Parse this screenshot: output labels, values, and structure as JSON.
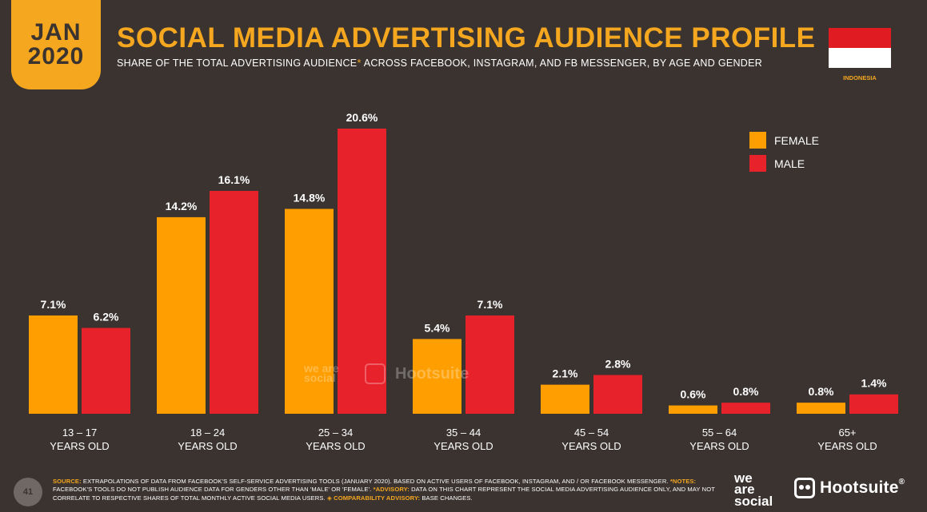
{
  "header": {
    "month": "JAN",
    "year": "2020",
    "title": "SOCIAL MEDIA ADVERTISING AUDIENCE PROFILE",
    "subtitle_pre": "SHARE OF THE TOTAL ADVERTISING AUDIENCE",
    "subtitle_asterisk": "*",
    "subtitle_post": " ACROSS FACEBOOK, INSTAGRAM, AND FB MESSENGER, BY AGE AND GENDER",
    "country": "INDONESIA"
  },
  "colors": {
    "background": "#3a3330",
    "accent": "#f4a71f",
    "female": "#ff9e00",
    "male": "#e8222a",
    "flag_red": "#e11b22",
    "flag_white": "#ffffff"
  },
  "chart_data": {
    "type": "bar",
    "title": "SOCIAL MEDIA ADVERTISING AUDIENCE PROFILE",
    "categories": [
      {
        "line1": "13 – 17",
        "line2": "YEARS OLD"
      },
      {
        "line1": "18 – 24",
        "line2": "YEARS OLD"
      },
      {
        "line1": "25 – 34",
        "line2": "YEARS OLD"
      },
      {
        "line1": "35 – 44",
        "line2": "YEARS OLD"
      },
      {
        "line1": "45 – 54",
        "line2": "YEARS OLD"
      },
      {
        "line1": "55 – 64",
        "line2": "YEARS OLD"
      },
      {
        "line1": "65+",
        "line2": "YEARS OLD"
      }
    ],
    "series": [
      {
        "name": "FEMALE",
        "color": "#ff9e00",
        "values": [
          7.1,
          14.2,
          14.8,
          5.4,
          2.1,
          0.6,
          0.8
        ],
        "labels": [
          "7.1%",
          "14.2%",
          "14.8%",
          "5.4%",
          "2.1%",
          "0.6%",
          "0.8%"
        ]
      },
      {
        "name": "MALE",
        "color": "#e8222a",
        "values": [
          6.2,
          16.1,
          20.6,
          7.1,
          2.8,
          0.8,
          1.4
        ],
        "labels": [
          "6.2%",
          "16.1%",
          "20.6%",
          "7.1%",
          "2.8%",
          "0.8%",
          "1.4%"
        ]
      }
    ],
    "ylim": [
      0,
      20.6
    ],
    "grid": false,
    "legend_position": "top-right"
  },
  "watermark": {
    "brand1": "we are social",
    "brand2": "Hootsuite"
  },
  "footer": {
    "page_number": "41",
    "source_key": "SOURCE:",
    "source_text": " EXTRAPOLATIONS OF DATA FROM FACEBOOK'S SELF-SERVICE ADVERTISING TOOLS (JANUARY 2020). BASED ON ACTIVE USERS OF FACEBOOK, INSTAGRAM, AND / OR FACEBOOK MESSENGER. ",
    "notes_key": "*NOTES:",
    "notes_text": " FACEBOOK'S TOOLS DO NOT PUBLISH AUDIENCE DATA FOR GENDERS OTHER THAN 'MALE' OR 'FEMALE'. ",
    "advisory_key": "*ADVISORY:",
    "advisory_text": " DATA ON THIS CHART REPRESENT THE SOCIAL MEDIA ADVERTISING AUDIENCE ONLY, AND MAY NOT CORRELATE TO RESPECTIVE SHARES OF TOTAL MONTHLY ACTIVE SOCIAL MEDIA USERS. ",
    "comparability_key": "◈ COMPARABILITY ADVISORY:",
    "comparability_text": " BASE CHANGES.",
    "logo_was_1": "we",
    "logo_was_2": "are",
    "logo_was_3": "social",
    "logo_hootsuite": "Hootsuite",
    "logo_reg": "®"
  }
}
